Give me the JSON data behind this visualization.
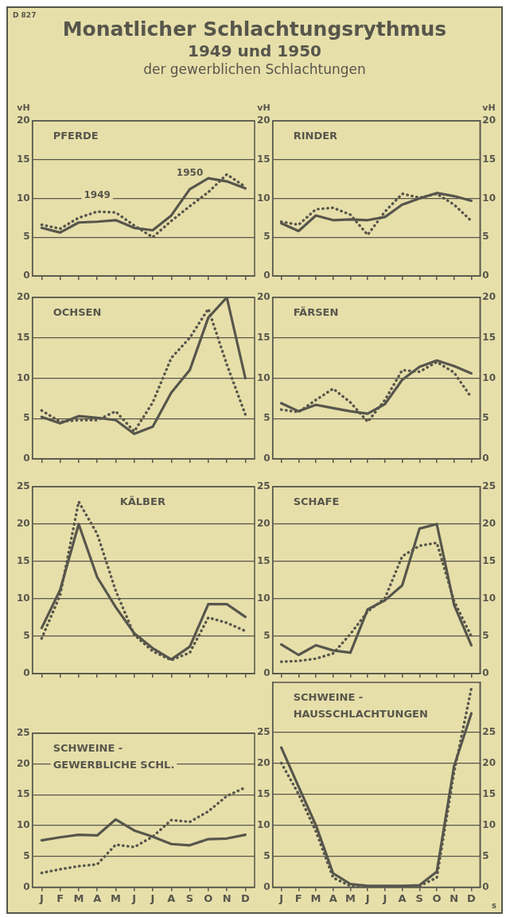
{
  "chart_data": [
    {
      "type": "other",
      "title": "Monatlicher Schlachtungsrythmus",
      "subtitle": "1949 und 1950",
      "annotations": [
        "der gewerblichen Schlachtungen",
        "D 827"
      ]
    },
    {
      "type": "line",
      "title": "PFERDE",
      "ylabel": "vH",
      "categories": [
        null,
        null,
        null,
        null,
        null,
        null,
        null,
        null,
        null,
        null,
        null,
        null
      ],
      "ylim": [
        0,
        20
      ],
      "yticks": [
        0,
        5,
        10,
        15,
        20
      ],
      "grid": "y",
      "tick_labels": "y",
      "series": [
        {
          "name": "1949",
          "color": "#57564c",
          "line_style": "dotted",
          "values": [
            6.6,
            6.1,
            7.5,
            8.3,
            8.2,
            6.5,
            5.0,
            7.1,
            9.0,
            10.8,
            13.1,
            11.5
          ]
        },
        {
          "name": "1950",
          "color": "#57564c",
          "line_style": "solid",
          "values": [
            6.2,
            5.6,
            6.9,
            7.0,
            7.2,
            6.2,
            5.9,
            7.8,
            11.2,
            12.6,
            12.2,
            11.3
          ]
        }
      ]
    },
    {
      "type": "line",
      "title": "RINDER",
      "ylabel": "vH",
      "y2label": "vH",
      "categories": [
        null,
        null,
        null,
        null,
        null,
        null,
        null,
        null,
        null,
        null,
        null,
        null
      ],
      "ylim": [
        0,
        20
      ],
      "yticks": [
        0,
        5,
        10,
        15,
        20
      ],
      "y2lim": [
        0,
        20
      ],
      "y2ticks": [
        0,
        5,
        10,
        15,
        20
      ],
      "grid": "y",
      "tick_labels": "y",
      "series": [
        {
          "color": "#57564c",
          "line_style": "dotted",
          "values": [
            7.0,
            6.6,
            8.6,
            8.8,
            7.9,
            5.3,
            8.3,
            10.6,
            10.1,
            10.6,
            9.2,
            7.1
          ]
        },
        {
          "color": "#57564c",
          "line_style": "solid",
          "values": [
            6.8,
            5.8,
            7.8,
            7.2,
            7.3,
            7.2,
            7.6,
            9.2,
            10.0,
            10.7,
            10.3,
            9.7
          ]
        }
      ]
    },
    {
      "type": "line",
      "title": "OCHSEN",
      "categories": [
        null,
        null,
        null,
        null,
        null,
        null,
        null,
        null,
        null,
        null,
        null,
        null
      ],
      "ylim": [
        0,
        20
      ],
      "yticks": [
        0,
        5,
        10,
        15,
        20
      ],
      "grid": "y",
      "tick_labels": "y",
      "series": [
        {
          "color": "#57564c",
          "line_style": "dotted",
          "values": [
            6.0,
            4.6,
            4.8,
            4.8,
            5.9,
            3.4,
            7.0,
            12.5,
            15.0,
            18.6,
            11.7,
            5.5
          ]
        },
        {
          "color": "#57564c",
          "line_style": "solid",
          "values": [
            5.2,
            4.4,
            5.3,
            5.1,
            4.8,
            3.1,
            4.0,
            8.2,
            11.0,
            17.5,
            20.0,
            10.0
          ]
        }
      ]
    },
    {
      "type": "line",
      "title": "FÄRSEN",
      "categories": [
        null,
        null,
        null,
        null,
        null,
        null,
        null,
        null,
        null,
        null,
        null,
        null
      ],
      "ylim": [
        0,
        20
      ],
      "yticks": [
        0,
        5,
        10,
        15,
        20
      ],
      "y2lim": [
        0,
        20
      ],
      "y2ticks": [
        0,
        5,
        10,
        15,
        20
      ],
      "grid": "y",
      "tick_labels": "y",
      "series": [
        {
          "color": "#57564c",
          "line_style": "dotted",
          "values": [
            6.1,
            5.8,
            7.3,
            8.7,
            7.0,
            4.6,
            7.3,
            11.0,
            10.8,
            12.0,
            10.7,
            7.6
          ]
        },
        {
          "color": "#57564c",
          "line_style": "solid",
          "values": [
            6.9,
            5.9,
            6.7,
            6.3,
            5.9,
            5.6,
            6.8,
            9.8,
            11.4,
            12.2,
            11.5,
            10.6
          ]
        }
      ]
    },
    {
      "type": "line",
      "title": "KÄLBER",
      "categories": [
        null,
        null,
        null,
        null,
        null,
        null,
        null,
        null,
        null,
        null,
        null,
        null
      ],
      "ylim": [
        0,
        25
      ],
      "yticks": [
        0,
        5,
        10,
        15,
        20,
        25
      ],
      "grid": "y",
      "tick_labels": "y",
      "series": [
        {
          "color": "#57564c",
          "line_style": "dotted",
          "values": [
            4.7,
            10.5,
            23.0,
            18.7,
            11.1,
            5.2,
            3.0,
            1.8,
            2.8,
            7.5,
            6.8,
            5.7
          ]
        },
        {
          "color": "#57564c",
          "line_style": "solid",
          "values": [
            6.1,
            11.2,
            20.0,
            12.9,
            8.9,
            5.4,
            3.4,
            1.9,
            3.6,
            9.3,
            9.3,
            7.6
          ]
        }
      ]
    },
    {
      "type": "line",
      "title": "SCHAFE",
      "categories": [
        null,
        null,
        null,
        null,
        null,
        null,
        null,
        null,
        null,
        null,
        null,
        null
      ],
      "ylim": [
        0,
        25
      ],
      "yticks": [
        0,
        5,
        10,
        15,
        20,
        25
      ],
      "y2lim": [
        0,
        25
      ],
      "y2ticks": [
        0,
        5,
        10,
        15,
        20,
        25
      ],
      "grid": "y",
      "tick_labels": "y",
      "series": [
        {
          "color": "#57564c",
          "line_style": "dotted",
          "values": [
            1.6,
            1.7,
            2.0,
            2.7,
            5.3,
            8.3,
            10.1,
            15.7,
            17.1,
            17.5,
            9.7,
            5.0
          ]
        },
        {
          "color": "#57564c",
          "line_style": "solid",
          "values": [
            3.9,
            2.5,
            3.8,
            3.1,
            2.8,
            8.6,
            9.8,
            11.8,
            19.4,
            20.0,
            9.2,
            3.8
          ]
        }
      ]
    },
    {
      "type": "line",
      "title": "SCHWEINE -\nGEWERBLICHE SCHL.",
      "categories": [
        "J",
        "F",
        "M",
        "A",
        "M",
        "J",
        "J",
        "A",
        "S",
        "O",
        "N",
        "D"
      ],
      "ylim": [
        0,
        25
      ],
      "yticks": [
        0,
        5,
        10,
        15,
        20,
        25
      ],
      "grid": "y",
      "series": [
        {
          "color": "#57564c",
          "line_style": "dotted",
          "values": [
            2.3,
            2.9,
            3.4,
            3.7,
            6.9,
            6.5,
            8.2,
            10.9,
            10.6,
            12.3,
            14.8,
            16.2
          ]
        },
        {
          "color": "#57564c",
          "line_style": "solid",
          "values": [
            7.6,
            8.1,
            8.5,
            8.4,
            11.0,
            9.2,
            8.2,
            7.0,
            6.8,
            7.8,
            7.9,
            8.5
          ]
        }
      ]
    },
    {
      "type": "line",
      "title": "SCHWEINE -\nHAUSSCHLACHTUNGEN",
      "categories": [
        "J",
        "F",
        "M",
        "A",
        "M",
        "J",
        "J",
        "A",
        "S",
        "O",
        "N",
        "D"
      ],
      "ylim": [
        0,
        33
      ],
      "yticks": [
        0,
        5,
        10,
        15,
        20,
        25
      ],
      "y2lim": [
        0,
        33
      ],
      "y2ticks": [
        0,
        5,
        10,
        15,
        20,
        25
      ],
      "grid": "y",
      "annotations": [
        "s"
      ],
      "series": [
        {
          "color": "#57564c",
          "line_style": "dotted",
          "values": [
            20.0,
            15.0,
            9.0,
            1.5,
            0.2,
            0,
            0,
            0,
            0.2,
            1.5,
            18.5,
            32
          ]
        },
        {
          "color": "#57564c",
          "line_style": "solid",
          "values": [
            22.5,
            16.2,
            10.0,
            2.2,
            0.5,
            0.2,
            0.2,
            0.2,
            0.3,
            2.5,
            19.5,
            28
          ]
        }
      ]
    }
  ]
}
